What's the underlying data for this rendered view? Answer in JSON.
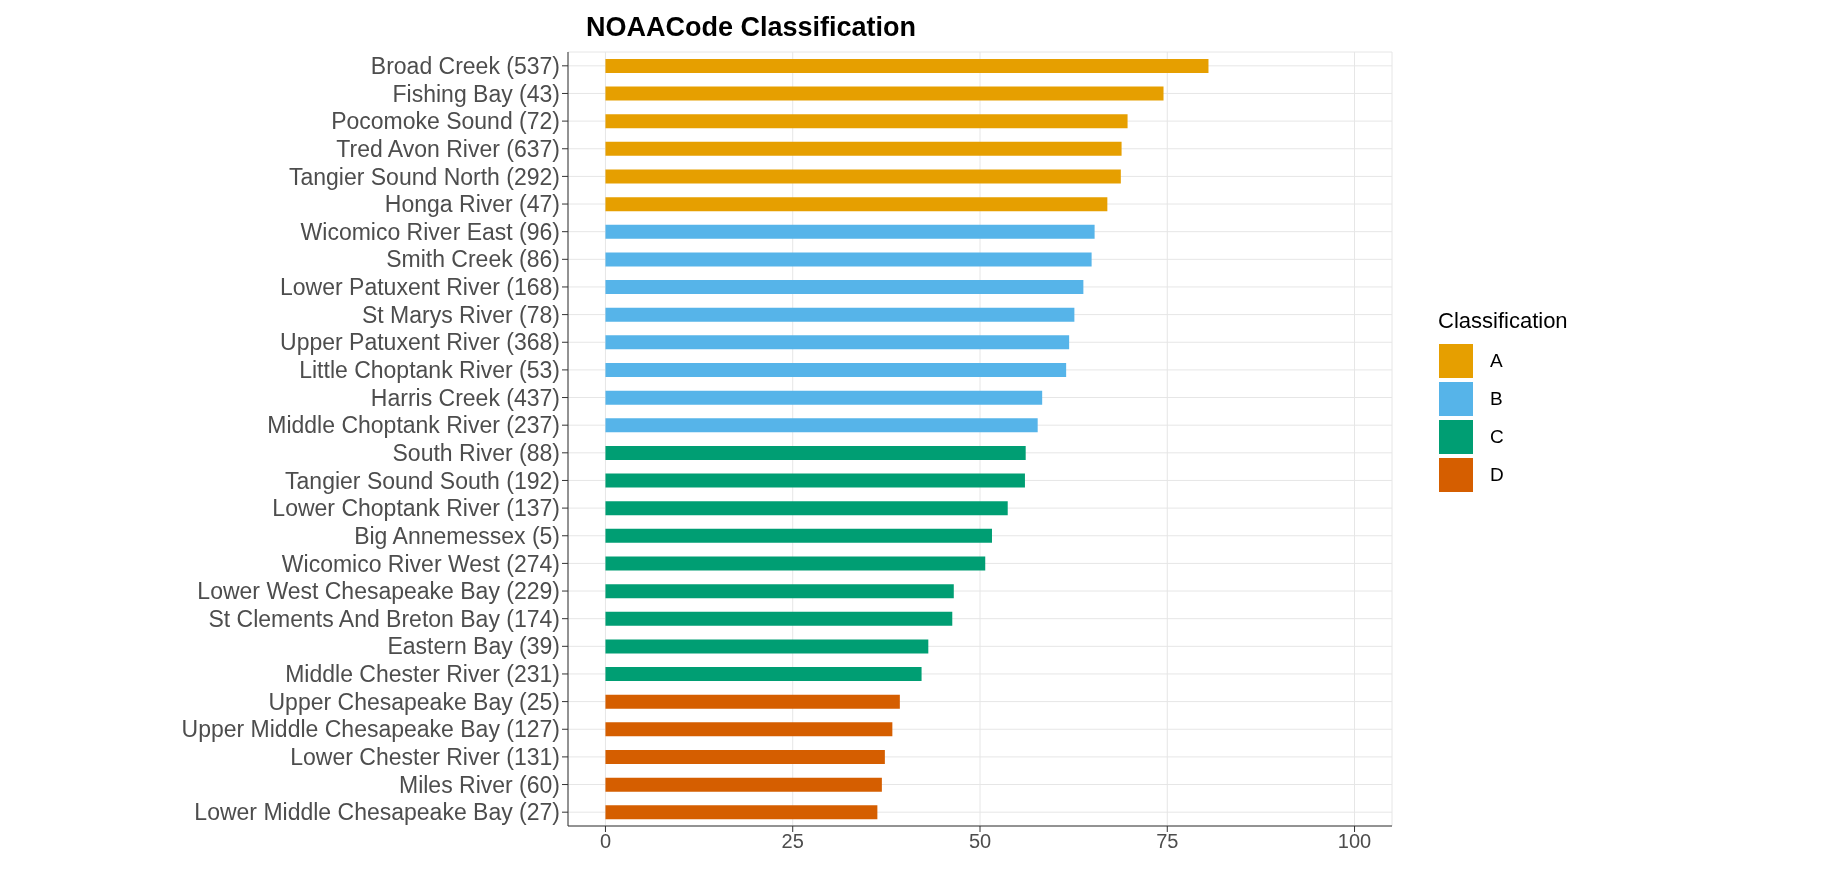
{
  "chart_data": {
    "type": "bar",
    "title": "NOAACode Classification",
    "legend_title": "Classification",
    "orientation": "horizontal",
    "stacked": true,
    "grid": true,
    "legend": "right",
    "categories": [
      "Broad Creek (537)",
      "Fishing Bay (43)",
      "Pocomoke Sound (72)",
      "Tred Avon River (637)",
      "Tangier Sound North (292)",
      "Honga River (47)",
      "Wicomico River East (96)",
      "Smith Creek (86)",
      "Lower Patuxent River (168)",
      "St Marys River (78)",
      "Upper Patuxent River (368)",
      "Little Choptank River (53)",
      "Harris Creek (437)",
      "Middle Choptank River (237)",
      "South River (88)",
      "Tangier Sound South (192)",
      "Lower Choptank River (137)",
      "Big Annemessex (5)",
      "Wicomico River West (274)",
      "Lower West Chesapeake Bay (229)",
      "St Clements And Breton Bay (174)",
      "Eastern Bay (39)",
      "Middle Chester River (231)",
      "Upper Chesapeake Bay (25)",
      "Upper Middle Chesapeake Bay (127)",
      "Lower Chester River (131)",
      "Miles River (60)",
      "Lower Middle Chesapeake Bay (27)"
    ],
    "series": [
      {
        "name": "A",
        "color": "#e69f00",
        "values": [
          80.5,
          74.5,
          69.7,
          68.9,
          68.8,
          67.0,
          null,
          null,
          null,
          null,
          null,
          null,
          null,
          null,
          null,
          null,
          null,
          null,
          null,
          null,
          null,
          null,
          null,
          null,
          null,
          null,
          null,
          null
        ]
      },
      {
        "name": "B",
        "color": "#56b4e9",
        "values": [
          null,
          null,
          null,
          null,
          null,
          null,
          65.3,
          64.9,
          63.8,
          62.6,
          61.9,
          61.5,
          58.3,
          57.7,
          null,
          null,
          null,
          null,
          null,
          null,
          null,
          null,
          null,
          null,
          null,
          null,
          null,
          null
        ]
      },
      {
        "name": "C",
        "color": "#009e73",
        "values": [
          null,
          null,
          null,
          null,
          null,
          null,
          null,
          null,
          null,
          null,
          null,
          null,
          null,
          null,
          56.1,
          56.0,
          53.7,
          51.6,
          50.7,
          46.5,
          46.3,
          43.1,
          42.2,
          null,
          null,
          null,
          null,
          null
        ]
      },
      {
        "name": "D",
        "color": "#d55e00",
        "values": [
          null,
          null,
          null,
          null,
          null,
          null,
          null,
          null,
          null,
          null,
          null,
          null,
          null,
          null,
          null,
          null,
          null,
          null,
          null,
          null,
          null,
          null,
          null,
          39.3,
          38.3,
          37.3,
          36.9,
          36.3
        ]
      }
    ],
    "xlim": [
      -5,
      105
    ],
    "xticks": [
      0,
      25,
      50,
      75,
      100
    ]
  }
}
